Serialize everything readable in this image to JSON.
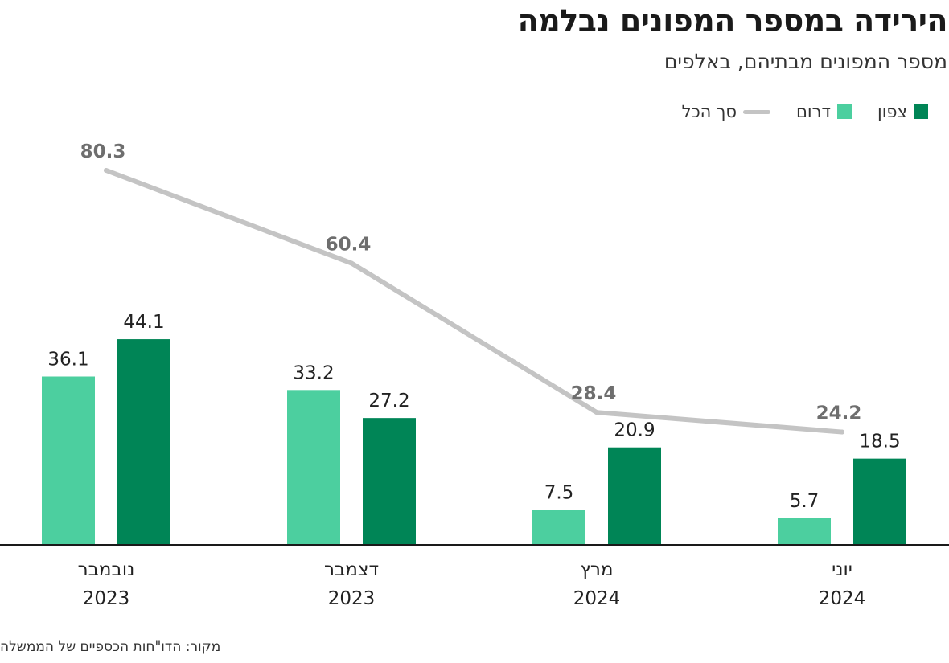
{
  "header": {
    "title": "הירידה במספר המפונים נבלמה",
    "subtitle": "מספר המפונים מבתיהם, באלפים"
  },
  "legend": {
    "north": "צפון",
    "south": "דרום",
    "total": "סך הכל"
  },
  "source": "מקור: הדו\"חות הכספיים של הממשלה",
  "colors": {
    "north": "#008556",
    "south": "#4ccf9f",
    "total": "#c4c4c4",
    "total_label": "#6e6e6e",
    "axis": "#1a1a1a"
  },
  "chart_data": {
    "type": "bar",
    "categories": [
      {
        "month": "נובמבר",
        "year": "2023"
      },
      {
        "month": "דצמבר",
        "year": "2023"
      },
      {
        "month": "מרץ",
        "year": "2024"
      },
      {
        "month": "יוני",
        "year": "2024"
      }
    ],
    "series": [
      {
        "name": "דרום",
        "key": "south",
        "values": [
          36.1,
          33.2,
          7.5,
          5.7
        ],
        "labels": [
          "36.1",
          "33.2",
          "7.5",
          "5.7"
        ]
      },
      {
        "name": "צפון",
        "key": "north",
        "values": [
          44.1,
          27.2,
          20.9,
          18.5
        ],
        "labels": [
          "44.1",
          "27.2",
          "20.9",
          "18.5"
        ]
      }
    ],
    "line": {
      "name": "סך הכל",
      "key": "total",
      "values": [
        80.3,
        60.4,
        28.4,
        24.2
      ],
      "labels": [
        "80.3",
        "60.4",
        "28.4",
        "24.2"
      ]
    },
    "ylim": [
      0,
      80.3
    ],
    "grid": false,
    "legend_position": "top-right"
  }
}
